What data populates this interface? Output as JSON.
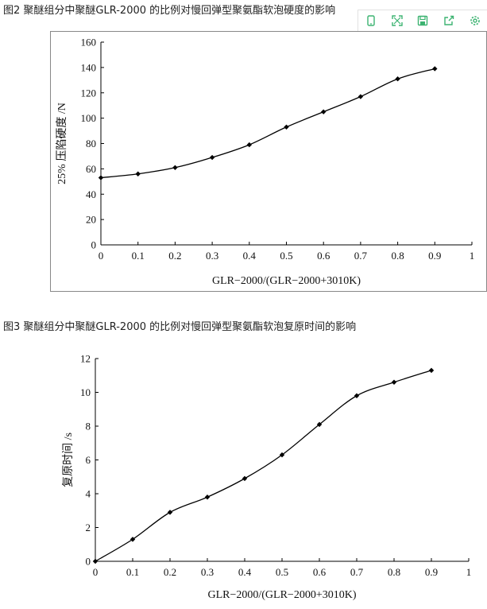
{
  "captions": {
    "fig2": "图2   聚醚组分中聚醚GLR-2000 的比例对慢回弹型聚氨酯软泡硬度的影响",
    "fig3": "图3 聚醚组分中聚醚GLR-2000 的比例对慢回弹型聚氨酯软泡复原时间的影响"
  },
  "toolbar": {
    "buttons": [
      "phone-icon",
      "fullscreen-icon",
      "save-icon",
      "share-icon",
      "settings-icon"
    ],
    "accent_color": "#3cb371"
  },
  "chart_data": [
    {
      "type": "line",
      "x": [
        0,
        0.1,
        0.2,
        0.3,
        0.4,
        0.5,
        0.6,
        0.7,
        0.8,
        0.9
      ],
      "series": [
        {
          "values": [
            53,
            56,
            61,
            69,
            79,
            93,
            105,
            117,
            131,
            139
          ]
        }
      ],
      "xlabel": "GLR−2000/(GLR−2000+3010K)",
      "ylabel": "25% 压陷硬度 /N",
      "xlim": [
        0,
        1
      ],
      "ylim": [
        0,
        160
      ],
      "xticks": [
        "0",
        "0.1",
        "0.2",
        "0.3",
        "0.4",
        "0.5",
        "0.6",
        "0.7",
        "0.8",
        "0.9",
        "1"
      ],
      "yticks": [
        "0",
        "20",
        "40",
        "60",
        "80",
        "100",
        "120",
        "140",
        "160"
      ],
      "grid": false,
      "line_color": "#000000",
      "frame": true
    },
    {
      "type": "line",
      "x": [
        0,
        0.1,
        0.2,
        0.3,
        0.4,
        0.5,
        0.6,
        0.7,
        0.8,
        0.9
      ],
      "series": [
        {
          "values": [
            0,
            1.3,
            2.9,
            3.8,
            4.9,
            6.3,
            8.1,
            9.8,
            10.6,
            11.3
          ]
        }
      ],
      "xlabel": "GLR−2000/(GLR−2000+3010K)",
      "ylabel": "复原时间 /s",
      "xlim": [
        0,
        1
      ],
      "ylim": [
        0,
        12
      ],
      "xticks": [
        "0",
        "0.1",
        "0.2",
        "0.3",
        "0.4",
        "0.5",
        "0.6",
        "0.7",
        "0.8",
        "0.9",
        "1"
      ],
      "yticks": [
        "0",
        "2",
        "4",
        "6",
        "8",
        "10",
        "12"
      ],
      "grid": false,
      "line_color": "#000000",
      "frame": false
    }
  ]
}
